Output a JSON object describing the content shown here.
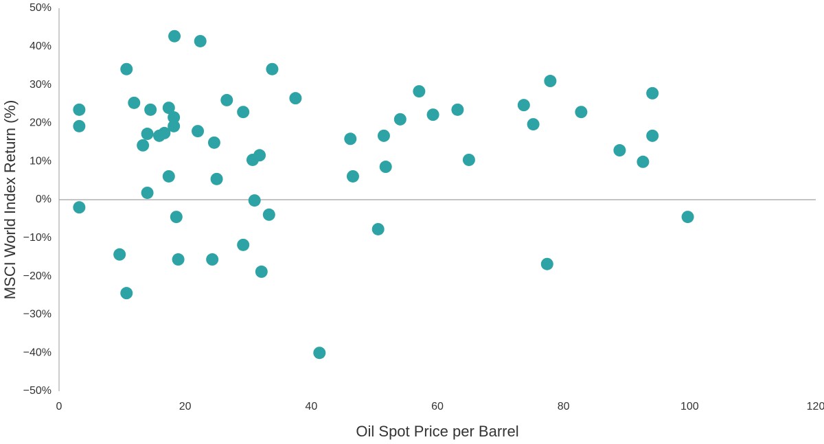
{
  "chart_data": {
    "type": "scatter",
    "x_label": "Oil Spot Price per Barrel",
    "y_label": "MSCI World Index Return (%)",
    "color": "#2ea3a5",
    "x": [
      3.2,
      3.2,
      3.2,
      9.6,
      10.7,
      10.7,
      11.9,
      13.3,
      14.0,
      14.0,
      14.5,
      15.9,
      16.7,
      17.4,
      17.4,
      18.3,
      18.2,
      18.2,
      18.6,
      18.9,
      22.0,
      22.4,
      24.3,
      24.6,
      25.0,
      26.6,
      29.2,
      29.2,
      30.7,
      31.0,
      31.8,
      32.1,
      33.3,
      33.8,
      37.5,
      41.3,
      46.2,
      46.6,
      50.6,
      51.5,
      51.8,
      54.1,
      57.1,
      59.3,
      63.2,
      65.0,
      73.7,
      75.2,
      77.4,
      77.9,
      82.8,
      88.9,
      92.6,
      94.1,
      94.1,
      99.7
    ],
    "values": [
      23.5,
      19.2,
      -2.0,
      -14.3,
      34.1,
      -24.4,
      25.3,
      14.2,
      17.2,
      1.8,
      23.5,
      16.7,
      17.4,
      24.0,
      6.1,
      42.7,
      21.5,
      19.2,
      -4.5,
      -15.6,
      17.9,
      41.4,
      -15.6,
      14.9,
      5.4,
      26.0,
      22.9,
      -11.8,
      10.4,
      -0.2,
      11.6,
      -18.8,
      -3.9,
      34.1,
      26.5,
      -40.0,
      15.9,
      6.1,
      -7.7,
      16.7,
      8.6,
      21.0,
      28.3,
      22.2,
      23.5,
      10.4,
      24.7,
      19.7,
      -16.8,
      31.0,
      22.9,
      12.9,
      9.9,
      27.8,
      16.7,
      -4.5
    ],
    "xlim": [
      0,
      120
    ],
    "xticks": [
      0,
      20,
      40,
      60,
      80,
      100,
      120
    ],
    "ylim": [
      -50,
      50
    ],
    "yticks": [
      {
        "value": -50,
        "label": "−50%"
      },
      {
        "value": -40,
        "label": "−40%"
      },
      {
        "value": -30,
        "label": "−30%"
      },
      {
        "value": -20,
        "label": "−20%"
      },
      {
        "value": -10,
        "label": "−10%"
      },
      {
        "value": 0,
        "label": "0%"
      },
      {
        "value": 10,
        "label": "10%"
      },
      {
        "value": 20,
        "label": "20%"
      },
      {
        "value": 30,
        "label": "30%"
      },
      {
        "value": 40,
        "label": "40%"
      },
      {
        "value": 50,
        "label": "50%"
      }
    ]
  }
}
